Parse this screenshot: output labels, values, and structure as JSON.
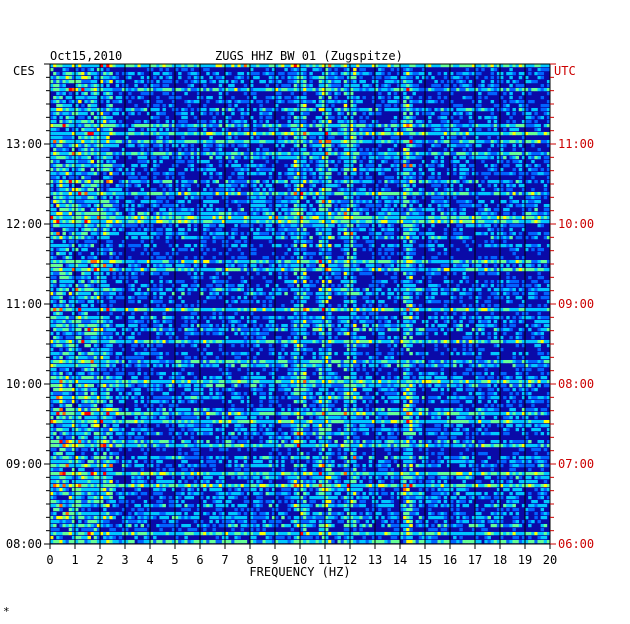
{
  "chart_data": {
    "type": "heatmap",
    "title": "ZUGS HHZ BW 01 (Zugspitze)",
    "date": "Oct15,2010",
    "xlabel": "FREQUENCY (HZ)",
    "x_ticks": [
      "0",
      "1",
      "2",
      "3",
      "4",
      "5",
      "6",
      "7",
      "8",
      "9",
      "10",
      "11",
      "12",
      "13",
      "14",
      "15",
      "16",
      "17",
      "18",
      "19",
      "20"
    ],
    "xlim": [
      0,
      20
    ],
    "left_axis_label": "CES",
    "right_axis_label": "UTC",
    "left_time_ticks": [
      "13:00",
      "12:00",
      "11:00",
      "10:00",
      "09:00",
      "08:00"
    ],
    "right_time_ticks": [
      "11:00",
      "10:00",
      "09:00",
      "08:00",
      "07:00",
      "06:00"
    ],
    "time_range_ces": [
      "08:00",
      "14:00"
    ],
    "time_range_utc": [
      "06:00",
      "12:00"
    ],
    "colormap": [
      "#000096",
      "#0000ff",
      "#0064ff",
      "#00c8ff",
      "#64ff96",
      "#ffff00",
      "#ff6400",
      "#ff0000"
    ],
    "background_color": "#0a0aa8",
    "gridline_color": "#000000",
    "label_color_left": "#000000",
    "label_color_right": "#cc0000",
    "persistent_band_hz": 14.3,
    "energetic_bands_hz": [
      10,
      11,
      12
    ]
  },
  "footer_mark": "*"
}
